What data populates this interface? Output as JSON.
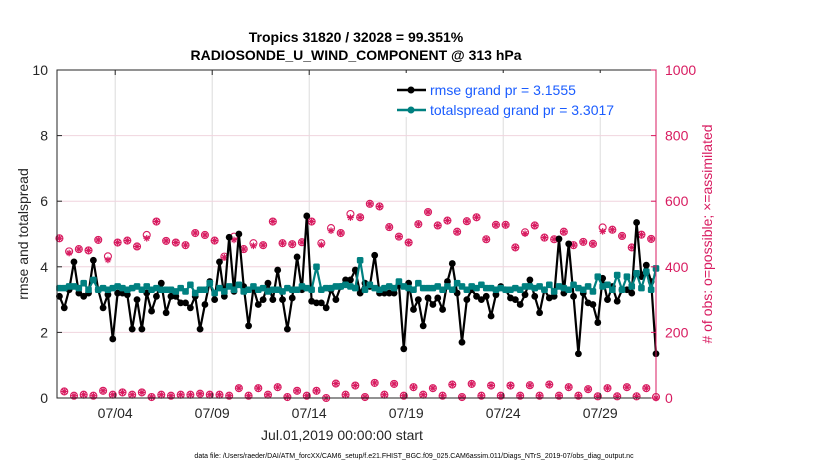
{
  "chart_data": {
    "type": "line",
    "title": "Tropics 31820 / 32028 = 99.351%",
    "subtitle": "RADIOSONDE_U_WIND_COMPONENT @ 313 hPa",
    "xlabel": "Jul.01,2019 00:00:00 start",
    "ylabel": "rmse and totalspread",
    "y2label": "# of obs: o=possible; ×=assimilated",
    "footer": "data file: /Users/raeder/DAI/ATM_forcXX/CAM6_setup/f.e21.FHIST_BGC.f09_025.CAM6assim.011/Diags_NTrS_2019-07/obs_diag_output.nc",
    "xlim": [
      0,
      30.875
    ],
    "ylim": [
      0,
      10
    ],
    "y2lim": [
      0,
      1000
    ],
    "x_step_days": 0.25,
    "xticks": [
      {
        "day": 3,
        "label": "07/04"
      },
      {
        "day": 8,
        "label": "07/09"
      },
      {
        "day": 13,
        "label": "07/14"
      },
      {
        "day": 18,
        "label": "07/19"
      },
      {
        "day": 23,
        "label": "07/24"
      },
      {
        "day": 28,
        "label": "07/29"
      }
    ],
    "yticks": [
      "0",
      "2",
      "4",
      "6",
      "8",
      "10"
    ],
    "y2ticks": [
      "0",
      "200",
      "400",
      "600",
      "800",
      "1000"
    ],
    "grid": true,
    "legend_position": "top-right",
    "colors": {
      "rmse": "#000000",
      "spread": "#008080",
      "obs": "#d81b60",
      "legend_text": "#1a5cff"
    },
    "series": [
      {
        "name": "rmse grand pr = 3.1555",
        "key": "rmse",
        "values": [
          3.1,
          2.75,
          3.3,
          4.15,
          3.2,
          3.1,
          3.2,
          4.2,
          3.3,
          2.75,
          3.15,
          1.8,
          3.2,
          3.2,
          3.15,
          2.1,
          3.0,
          2.1,
          3.2,
          2.65,
          3.1,
          3.5,
          2.6,
          3.1,
          3.1,
          2.9,
          2.9,
          2.75,
          3.1,
          2.1,
          2.85,
          3.55,
          3.0,
          4.15,
          3.1,
          4.9,
          3.25,
          5.0,
          3.4,
          2.2,
          3.35,
          2.85,
          3.0,
          3.5,
          3.0,
          3.9,
          3.0,
          2.1,
          3.05,
          4.3,
          3.3,
          5.55,
          2.95,
          2.9,
          2.9,
          2.75,
          3.3,
          3.0,
          3.4,
          3.6,
          3.6,
          3.9,
          3.2,
          3.5,
          3.4,
          4.35,
          3.2,
          3.2,
          3.2,
          3.2,
          3.45,
          1.5,
          3.5,
          2.7,
          3.0,
          2.2,
          3.05,
          2.85,
          3.05,
          2.7,
          3.55,
          4.1,
          3.2,
          1.7,
          3.0,
          3.3,
          3.1,
          3.0,
          3.1,
          2.5,
          3.15,
          3.4,
          3.3,
          3.05,
          3.0,
          2.85,
          3.15,
          3.6,
          3.1,
          2.6,
          3.3,
          3.05,
          3.1,
          4.85,
          3.2,
          4.7,
          3.1,
          1.35,
          3.2,
          2.9,
          2.85,
          2.3,
          3.65,
          3.0,
          3.4,
          2.95,
          3.3,
          3.3,
          3.2,
          5.35,
          3.7,
          4.05,
          3.55,
          1.35
        ]
      },
      {
        "name": "totalspread grand pr = 3.3017",
        "key": "spread",
        "values": [
          3.35,
          3.35,
          3.4,
          3.4,
          3.35,
          3.5,
          3.3,
          3.6,
          3.3,
          3.35,
          3.3,
          3.35,
          3.4,
          3.35,
          3.3,
          3.35,
          3.4,
          3.3,
          3.4,
          3.3,
          3.35,
          3.3,
          3.3,
          3.3,
          3.25,
          3.35,
          3.25,
          3.45,
          3.2,
          3.3,
          3.3,
          3.5,
          3.2,
          3.35,
          3.25,
          3.4,
          3.3,
          3.45,
          3.25,
          3.3,
          3.4,
          3.3,
          3.35,
          3.25,
          3.3,
          3.3,
          3.25,
          3.35,
          3.3,
          3.3,
          3.4,
          3.35,
          3.3,
          4.0,
          3.3,
          3.35,
          3.35,
          3.4,
          3.4,
          3.45,
          3.4,
          3.35,
          4.2,
          3.3,
          3.45,
          3.35,
          3.3,
          3.35,
          3.4,
          3.35,
          3.55,
          3.4,
          3.35,
          3.3,
          3.5,
          3.35,
          3.35,
          3.35,
          3.4,
          3.3,
          3.4,
          3.3,
          3.5,
          3.4,
          3.3,
          3.4,
          3.35,
          3.45,
          3.35,
          3.35,
          3.3,
          3.35,
          3.3,
          3.3,
          3.35,
          3.3,
          3.4,
          3.4,
          3.35,
          3.4,
          3.3,
          3.45,
          3.25,
          3.4,
          3.35,
          3.3,
          3.45,
          3.35,
          3.3,
          3.4,
          3.25,
          3.7,
          3.4,
          3.45,
          3.3,
          3.75,
          3.3,
          3.7,
          3.4,
          3.8,
          3.35,
          3.85,
          3.3,
          3.95
        ]
      }
    ],
    "obs_possible": {
      "upper": [
        487,
        447,
        454,
        450,
        482,
        432,
        474,
        480,
        462,
        497,
        538,
        479,
        474,
        466,
        503,
        497,
        480,
        431,
        492,
        454,
        472,
        466,
        538,
        472,
        469,
        475,
        538,
        472,
        518,
        503,
        561,
        551,
        592,
        584,
        521,
        492,
        474,
        530,
        567,
        526,
        541,
        507,
        539,
        551,
        484,
        528,
        528,
        459,
        505,
        526,
        489,
        484,
        507,
        466,
        476,
        470,
        520,
        513,
        494,
        459,
        498,
        485
      ],
      "lower": [
        20,
        7,
        10,
        7,
        22,
        10,
        17,
        10,
        17,
        3,
        10,
        7,
        10,
        10,
        13,
        10,
        10,
        7,
        30,
        7,
        30,
        10,
        33,
        3,
        22,
        7,
        22,
        0,
        44,
        10,
        38,
        3,
        46,
        10,
        43,
        7,
        33,
        10,
        30,
        7,
        41,
        3,
        43,
        7,
        38,
        7,
        38,
        7,
        39,
        7,
        41,
        7,
        33,
        7,
        27,
        5,
        30,
        5,
        33,
        5,
        30,
        3
      ]
    },
    "obs_assimilated": {
      "upper": [
        487,
        442,
        454,
        450,
        482,
        421,
        474,
        480,
        462,
        487,
        538,
        479,
        474,
        466,
        503,
        497,
        480,
        429,
        482,
        454,
        464,
        466,
        538,
        472,
        469,
        475,
        538,
        467,
        510,
        503,
        550,
        551,
        592,
        584,
        521,
        492,
        474,
        530,
        567,
        526,
        541,
        507,
        539,
        551,
        484,
        528,
        528,
        459,
        501,
        526,
        489,
        484,
        507,
        466,
        476,
        470,
        508,
        513,
        494,
        459,
        498,
        485
      ],
      "lower": [
        20,
        7,
        10,
        7,
        22,
        10,
        17,
        10,
        17,
        3,
        10,
        7,
        10,
        10,
        13,
        10,
        10,
        7,
        30,
        7,
        30,
        10,
        33,
        3,
        22,
        7,
        22,
        0,
        44,
        10,
        38,
        3,
        46,
        10,
        43,
        7,
        33,
        10,
        30,
        7,
        41,
        3,
        43,
        7,
        38,
        7,
        38,
        7,
        39,
        7,
        41,
        7,
        33,
        7,
        27,
        5,
        30,
        5,
        33,
        5,
        30,
        0
      ]
    }
  }
}
